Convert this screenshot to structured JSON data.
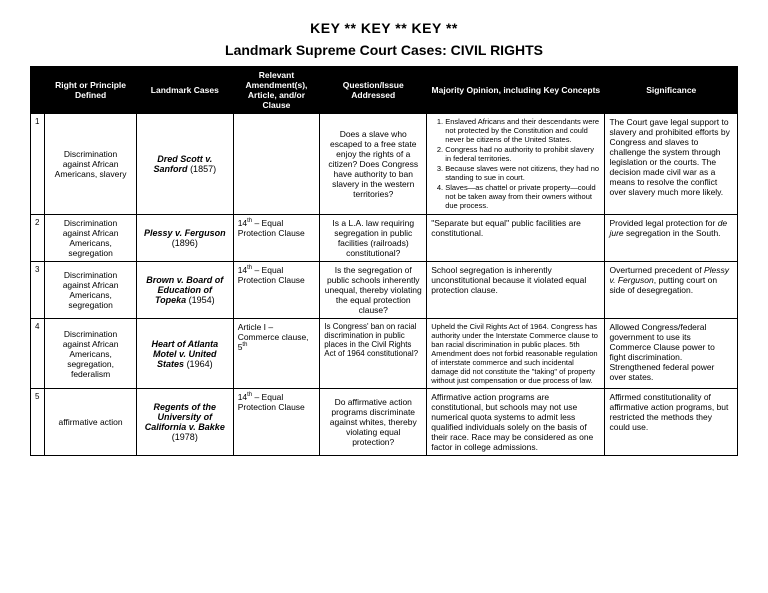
{
  "header": {
    "key_line": "KEY  **  KEY  **  KEY  **",
    "title": "Landmark Supreme Court Cases: CIVIL RIGHTS"
  },
  "columns": {
    "num": "",
    "principle": "Right or Principle Defined",
    "case": "Landmark Cases",
    "amendment": "Relevant Amendment(s), Article, and/or Clause",
    "question": "Question/Issue Addressed",
    "opinion": "Majority Opinion, including Key Concepts",
    "significance": "Significance"
  },
  "rows": [
    {
      "num": "1",
      "principle": "Discrimination against African Americans, slavery",
      "case_name": "Dred Scott v. Sanford",
      "case_year": "(1857)",
      "amendment": "",
      "question": "Does a slave who escaped to a free state enjoy the rights of a citizen? Does Congress have authority to ban slavery in the western territories?",
      "opinion_type": "list",
      "opinion_items": [
        "Enslaved Africans and their descendants were not protected by the Constitution and could never be citizens of the United States.",
        "Congress had no authority to prohibit slavery in federal territories.",
        "Because slaves were not citizens, they had no standing to sue in court.",
        "Slaves—as chattel or private property—could not be taken away from their owners without due process."
      ],
      "significance": "The Court gave legal support to slavery and prohibited efforts by Congress and slaves to challenge the system through legislation or the courts. The decision made civil war as a means to resolve the conflict over slavery much more likely."
    },
    {
      "num": "2",
      "principle": "Discrimination against African Americans, segregation",
      "case_name": "Plessy v. Ferguson",
      "case_year": "(1896)",
      "amendment_html": "14<sup>th</sup> – Equal Protection Clause",
      "question": "Is a L.A. law requiring segregation in public facilities (railroads) constitutional?",
      "opinion_text": "\"Separate but equal\" public facilities are constitutional.",
      "significance_html": "Provided legal protection for <em class='ital'>de jure</em> segregation in the South."
    },
    {
      "num": "3",
      "principle": "Discrimination against African Americans, segregation",
      "case_name": "Brown v. Board of Education of Topeka",
      "case_year": "(1954)",
      "amendment_html": "14<sup>th</sup> – Equal Protection Clause",
      "question": "Is the segregation of public schools inherently unequal, thereby violating the equal protection clause?",
      "opinion_text": "School segregation is inherently unconstitutional because it violated equal protection clause.",
      "significance_html": "Overturned precedent of <em class='ital'>Plessy v. Ferguson</em>, putting court on side of desegregation."
    },
    {
      "num": "4",
      "principle": "Discrimination against African Americans, segregation, federalism",
      "case_name": "Heart of Atlanta Motel v. United States",
      "case_year": "(1964)",
      "amendment_html": "Article I – Commerce clause, 5<sup>th</sup>",
      "question_html": "Is Congress' ban on racial discrimination in public places in the Civil Rights Act of 1964 constitutional?",
      "opinion_small": "Upheld the Civil Rights Act of 1964. Congress has authority under the Interstate Commerce clause to ban racial discrimination in public places. 5th Amendment does not forbid reasonable regulation of interstate commerce and such incidental damage did not constitute the \"taking\" of property without just compensation or due process of law.",
      "significance": "Allowed Congress/federal government to use its Commerce Clause power to fight discrimination. Strengthened federal power over states."
    },
    {
      "num": "5",
      "principle": "affirmative action",
      "case_name": "Regents of the University of California v. Bakke",
      "case_year": "(1978)",
      "amendment_html": "14<sup>th</sup> – Equal Protection Clause",
      "question": "Do affirmative action programs discriminate against whites, thereby violating equal protection?",
      "opinion_text": "Affirmative action programs are constitutional, but schools may not use numerical quota systems to admit less qualified individuals solely on the basis of their race. Race may be considered as one factor in college admissions.",
      "significance": "Affirmed constitutionality of affirmative action programs, but restricted the methods they could use."
    }
  ]
}
